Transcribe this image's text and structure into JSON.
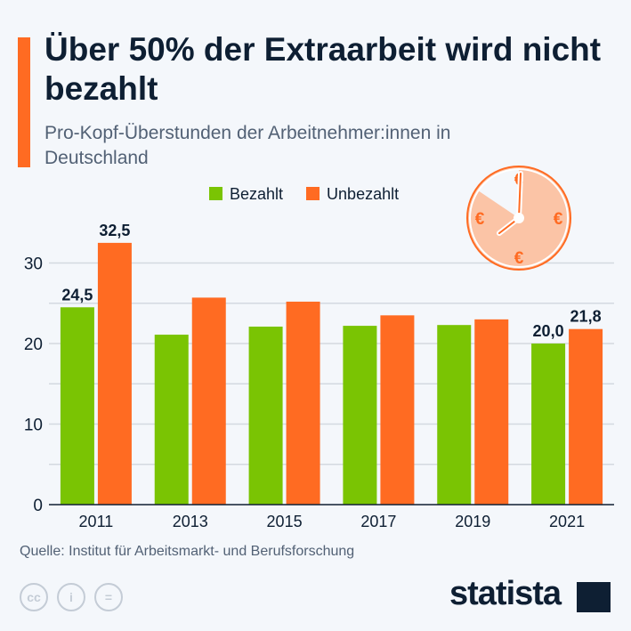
{
  "title": "Über 50% der Extraarbeit wird nicht bezahlt",
  "subtitle": "Pro-Kopf-Überstunden der Arbeitnehmer:innen in Deutschland",
  "source": "Quelle: Institut für Arbeitsmarkt- und Berufsforschung",
  "brand": "statista",
  "icons": [
    "creative-commons-icon",
    "attribution-icon",
    "no-derivatives-icon",
    "clock-euro-icon"
  ],
  "chart_data": {
    "type": "bar",
    "categories": [
      "2011",
      "2013",
      "2015",
      "2017",
      "2019",
      "2021"
    ],
    "series": [
      {
        "name": "Bezahlt",
        "color": "#7ac403",
        "values": [
          24.5,
          21.1,
          22.1,
          22.2,
          22.3,
          20.0
        ],
        "labels": [
          "24,5",
          "",
          "",
          "",
          "",
          "20,0"
        ]
      },
      {
        "name": "Unbezahlt",
        "color": "#ff6b22",
        "values": [
          32.5,
          25.7,
          25.2,
          23.5,
          23.0,
          21.8
        ],
        "labels": [
          "32,5",
          "",
          "",
          "",
          "",
          "21,8"
        ]
      }
    ],
    "ylim": [
      0,
      35
    ],
    "yticks": [
      "0",
      "10",
      "20",
      "30"
    ],
    "grid": true,
    "legend": "top"
  }
}
